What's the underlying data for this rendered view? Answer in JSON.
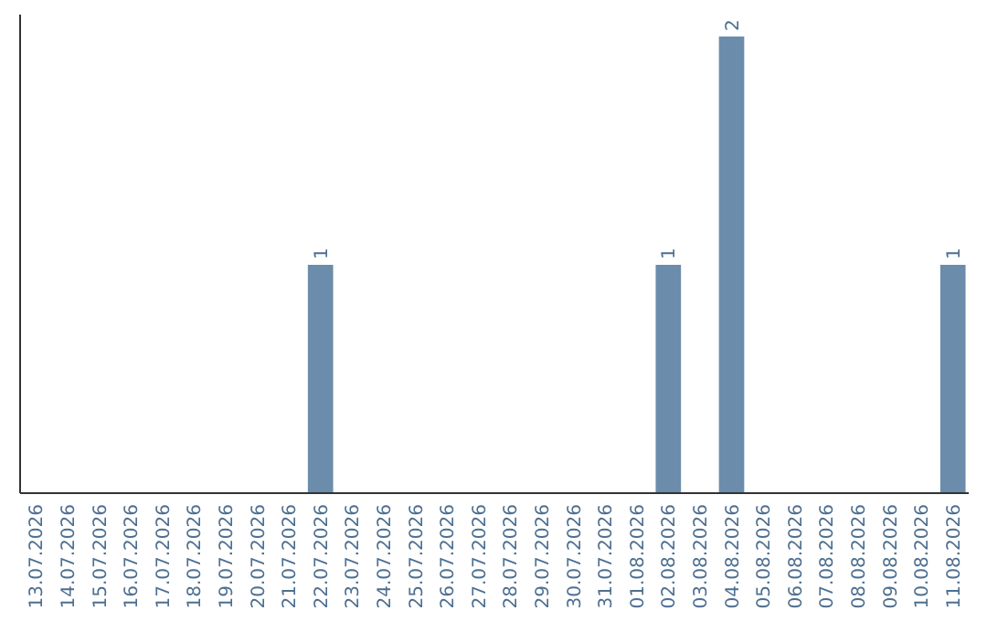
{
  "chart_data": {
    "type": "bar",
    "categories": [
      "13.07.2026",
      "14.07.2026",
      "15.07.2026",
      "16.07.2026",
      "17.07.2026",
      "18.07.2026",
      "19.07.2026",
      "20.07.2026",
      "21.07.2026",
      "22.07.2026",
      "23.07.2026",
      "24.07.2026",
      "25.07.2026",
      "26.07.2026",
      "27.07.2026",
      "28.07.2026",
      "29.07.2026",
      "30.07.2026",
      "31.07.2026",
      "01.08.2026",
      "02.08.2026",
      "03.08.2026",
      "04.08.2026",
      "05.08.2026",
      "06.08.2026",
      "07.08.2026",
      "08.08.2026",
      "09.08.2026",
      "10.08.2026",
      "11.08.2026"
    ],
    "values": [
      0,
      0,
      0,
      0,
      0,
      0,
      0,
      0,
      0,
      1,
      0,
      0,
      0,
      0,
      0,
      0,
      0,
      0,
      0,
      0,
      1,
      0,
      2,
      0,
      0,
      0,
      0,
      0,
      0,
      1
    ],
    "value_labels": [
      null,
      null,
      null,
      null,
      null,
      null,
      null,
      null,
      null,
      "1",
      null,
      null,
      null,
      null,
      null,
      null,
      null,
      null,
      null,
      null,
      "1",
      null,
      "2",
      null,
      null,
      null,
      null,
      null,
      null,
      "1"
    ],
    "color": "#6b8cab"
  }
}
